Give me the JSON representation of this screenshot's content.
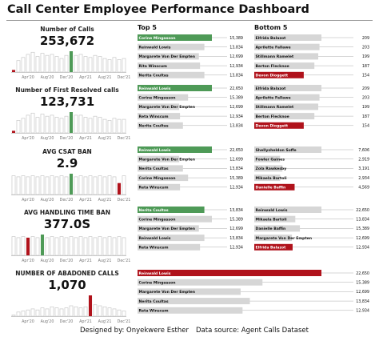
{
  "title": "Call Center Employee Performance Dashboard",
  "headers": {
    "top5": "Top 5",
    "bottom5": "Bottom 5"
  },
  "footer": {
    "designer": "Designed by:  Onyekwere Esther",
    "source": "Data source: Agent Calls Dataset"
  },
  "colors": {
    "green": "#4e9a57",
    "red": "#b0121b",
    "gray": "#d6d6d6",
    "outline": "#c8c8c8"
  },
  "chart_data": [
    {
      "type": "bar",
      "label": "Number of Calls",
      "value": "253,672",
      "categories": [
        "Jan'20",
        "Feb'20",
        "Mar'20",
        "Apr'20",
        "May'20",
        "Jun'20",
        "Jul'20",
        "Aug'20",
        "Sep'20",
        "Oct'20",
        "Nov'20",
        "Dec'20",
        "Jan'21",
        "Feb'21",
        "Mar'21",
        "Apr'21",
        "May'21",
        "Jun'21",
        "Jul'21",
        "Aug'21",
        "Sep'21",
        "Oct'21",
        "Nov'21",
        "Dec'21"
      ],
      "tick_labels": [
        "Apr'20",
        "Aug'20",
        "Dec'20",
        "Apr'21",
        "Aug'21",
        "Dec'21"
      ],
      "values": [
        0.1,
        0.55,
        0.7,
        0.85,
        0.95,
        0.75,
        0.9,
        0.8,
        0.85,
        0.75,
        0.65,
        0.8,
        1.0,
        0.8,
        0.85,
        0.75,
        0.7,
        0.8,
        0.75,
        0.65,
        0.6,
        0.7,
        0.6,
        0.65
      ],
      "highlight": [
        {
          "index": 0,
          "color": "red"
        },
        {
          "index": 12,
          "color": "green"
        }
      ]
    },
    {
      "type": "bar",
      "label": "Number of First Resolved calls",
      "value": "123,731",
      "categories": [
        "Jan'20",
        "Feb'20",
        "Mar'20",
        "Apr'20",
        "May'20",
        "Jun'20",
        "Jul'20",
        "Aug'20",
        "Sep'20",
        "Oct'20",
        "Nov'20",
        "Dec'20",
        "Jan'21",
        "Feb'21",
        "Mar'21",
        "Apr'21",
        "May'21",
        "Jun'21",
        "Jul'21",
        "Aug'21",
        "Sep'21",
        "Oct'21",
        "Nov'21",
        "Dec'21"
      ],
      "tick_labels": [
        "Apr'20",
        "Aug'20",
        "Dec'20",
        "Apr'21",
        "Aug'21",
        "Dec'21"
      ],
      "values": [
        0.1,
        0.6,
        0.7,
        0.85,
        0.95,
        0.75,
        0.9,
        0.8,
        0.85,
        0.75,
        0.7,
        0.8,
        1.0,
        0.85,
        0.85,
        0.75,
        0.7,
        0.8,
        0.75,
        0.65,
        0.6,
        0.7,
        0.65,
        0.65
      ],
      "highlight": [
        {
          "index": 0,
          "color": "red"
        },
        {
          "index": 12,
          "color": "green"
        }
      ]
    },
    {
      "type": "bar",
      "label": "AVG CSAT BAN",
      "value": "2.9",
      "categories": [
        "Jan'20",
        "Feb'20",
        "Mar'20",
        "Apr'20",
        "May'20",
        "Jun'20",
        "Jul'20",
        "Aug'20",
        "Sep'20",
        "Oct'20",
        "Nov'20",
        "Dec'20",
        "Jan'21",
        "Feb'21",
        "Mar'21",
        "Apr'21",
        "May'21",
        "Jun'21",
        "Jul'21",
        "Aug'21",
        "Sep'21",
        "Oct'21",
        "Nov'21",
        "Dec'21"
      ],
      "tick_labels": [
        "Apr'20",
        "Aug'20",
        "Dec'20",
        "Apr'21",
        "Aug'21",
        "Dec'21"
      ],
      "values": [
        0.9,
        0.85,
        0.9,
        0.85,
        0.9,
        0.85,
        0.9,
        0.85,
        0.9,
        0.85,
        0.9,
        0.85,
        1.0,
        0.85,
        0.9,
        0.85,
        0.9,
        0.85,
        0.9,
        0.85,
        0.9,
        0.85,
        0.55,
        0.9
      ],
      "highlight": [
        {
          "index": 12,
          "color": "green"
        },
        {
          "index": 22,
          "color": "red"
        }
      ]
    },
    {
      "type": "bar",
      "label": "AVG HANDLING TIME BAN",
      "value": "377.0S",
      "categories": [
        "Jan'20",
        "Feb'20",
        "Mar'20",
        "Apr'20",
        "May'20",
        "Jun'20",
        "Jul'20",
        "Aug'20",
        "Sep'20",
        "Oct'20",
        "Nov'20",
        "Dec'20",
        "Jan'21",
        "Feb'21",
        "Mar'21",
        "Apr'21",
        "May'21",
        "Jun'21",
        "Jul'21",
        "Aug'21",
        "Sep'21",
        "Oct'21",
        "Nov'21",
        "Dec'21"
      ],
      "tick_labels": [
        "Apr'20",
        "Aug'20",
        "Dec'20",
        "Apr'21",
        "Aug'21",
        "Dec'21"
      ],
      "values": [
        0.9,
        0.85,
        0.9,
        0.85,
        0.9,
        0.85,
        1.0,
        0.85,
        0.9,
        0.85,
        0.9,
        0.85,
        0.9,
        0.85,
        0.9,
        0.85,
        0.9,
        0.85,
        0.9,
        0.85,
        0.9,
        0.85,
        0.9,
        0.85
      ],
      "highlight": [
        {
          "index": 3,
          "color": "red"
        },
        {
          "index": 6,
          "color": "green"
        }
      ]
    },
    {
      "type": "bar",
      "label": "NUMBER OF ABADONED CALLS",
      "value": "1,070",
      "categories": [
        "Jan'20",
        "Feb'20",
        "Mar'20",
        "Apr'20",
        "May'20",
        "Jun'20",
        "Jul'20",
        "Aug'20",
        "Sep'20",
        "Oct'20",
        "Nov'20",
        "Dec'20",
        "Jan'21",
        "Feb'21",
        "Mar'21",
        "Apr'21",
        "May'21",
        "Jun'21",
        "Jul'21",
        "Aug'21",
        "Sep'21",
        "Oct'21",
        "Nov'21",
        "Dec'21"
      ],
      "tick_labels": [
        "Apr'20",
        "Aug'20",
        "Dec'20",
        "Apr'21",
        "Aug'21",
        "Dec'21"
      ],
      "values": [
        0.05,
        0.2,
        0.25,
        0.3,
        0.35,
        0.3,
        0.4,
        0.35,
        0.45,
        0.4,
        0.35,
        0.4,
        0.5,
        0.45,
        0.4,
        0.45,
        1.0,
        0.55,
        0.5,
        0.45,
        0.4,
        0.35,
        0.3,
        0.25
      ],
      "highlight": [
        {
          "index": 16,
          "color": "red"
        }
      ]
    }
  ],
  "ranking_data": [
    {
      "type": "bar",
      "metric": "Number of Calls",
      "top5_max": 15389,
      "bottom5_max": 209,
      "top5": [
        {
          "name": "Corine Mingasson",
          "value": "15,389",
          "v": 15389
        },
        {
          "name": "Reinwald Lowis",
          "value": "13,834",
          "v": 13834
        },
        {
          "name": "Margarete Von Der Empten",
          "value": "12,699",
          "v": 12699
        },
        {
          "name": "Rita Winscum",
          "value": "12,934",
          "v": 12934
        },
        {
          "name": "Nerita Coultas",
          "value": "13,834",
          "v": 13834
        }
      ],
      "bottom5": [
        {
          "name": "Elfrida Balazot",
          "value": "209",
          "v": 209
        },
        {
          "name": "Aprilette Fallawe",
          "value": "203",
          "v": 203
        },
        {
          "name": "Stillmann Ramelet",
          "value": "199",
          "v": 199
        },
        {
          "name": "Berton Flecknoe",
          "value": "187",
          "v": 187
        },
        {
          "name": "Devon Dioggett",
          "value": "154",
          "v": 154
        }
      ]
    },
    {
      "type": "bar",
      "metric": "Number of First Resolved calls",
      "top5_max": 22650,
      "bottom5_max": 209,
      "top5": [
        {
          "name": "Reinwald Lowis",
          "value": "22,650",
          "v": 22650
        },
        {
          "name": "Corine Mingasson",
          "value": "15,389",
          "v": 15389
        },
        {
          "name": "Margarete Von Der Empten",
          "value": "12,699",
          "v": 12699
        },
        {
          "name": "Reta Winscum",
          "value": "12,934",
          "v": 12934
        },
        {
          "name": "Nerita Coultas",
          "value": "13,834",
          "v": 13834
        }
      ],
      "bottom5": [
        {
          "name": "Elfrida Balazot",
          "value": "209",
          "v": 209
        },
        {
          "name": "Aprilette Fallawe",
          "value": "203",
          "v": 203
        },
        {
          "name": "Stillmann Ramelet",
          "value": "199",
          "v": 199
        },
        {
          "name": "Berton Flecknoe",
          "value": "187",
          "v": 187
        },
        {
          "name": "Devon Dioggett",
          "value": "154",
          "v": 154
        }
      ]
    },
    {
      "type": "bar",
      "metric": "AVG CSAT BAN",
      "top5_max": 22650,
      "bottom5_max": 7606,
      "top5": [
        {
          "name": "Reinwald Lowis",
          "value": "22,650",
          "v": 22650
        },
        {
          "name": "Margarete Von Der Empten",
          "value": "12,699",
          "v": 12699
        },
        {
          "name": "Nerita Coultas",
          "value": "13,834",
          "v": 13834
        },
        {
          "name": "Corine Mingasson",
          "value": "15,389",
          "v": 15389
        },
        {
          "name": "Reta Winscum",
          "value": "12,934",
          "v": 12934
        }
      ],
      "bottom5": [
        {
          "name": "Shellysheldon Soffe",
          "value": "7,606",
          "v": 7606
        },
        {
          "name": "Fowler Gaines",
          "value": "2,919",
          "v": 2919
        },
        {
          "name": "Zola Rawkesby",
          "value": "3,191",
          "v": 3191
        },
        {
          "name": "Mikaela Bartoli",
          "value": "2,934",
          "v": 2934
        },
        {
          "name": "Danielle Baffin",
          "value": "4,569",
          "v": 4569
        }
      ]
    },
    {
      "type": "bar",
      "metric": "AVG HANDLING TIME BAN",
      "top5_max": 15389,
      "bottom5_max": 22650,
      "top5": [
        {
          "name": "Nerita Coultas",
          "value": "13,834",
          "v": 13834
        },
        {
          "name": "Corine Mingasson",
          "value": "15,389",
          "v": 15389
        },
        {
          "name": "Margarete Von Der Empten",
          "value": "12,699",
          "v": 12699
        },
        {
          "name": "Reinwald Lowis",
          "value": "13,834",
          "v": 13834
        },
        {
          "name": "Reta Winscum",
          "value": "12,934",
          "v": 12934
        }
      ],
      "bottom5": [
        {
          "name": "Reinwald Lowis",
          "value": "22,650",
          "v": 22650
        },
        {
          "name": "Mikaela Bartoli",
          "value": "13,834",
          "v": 13834
        },
        {
          "name": "Danielle Baffin",
          "value": "15,389",
          "v": 15389
        },
        {
          "name": "Margarete Von Der Empten",
          "value": "12,699",
          "v": 12699
        },
        {
          "name": "Elfrida Balazot",
          "value": "12,934",
          "v": 12934
        }
      ]
    },
    {
      "type": "bar",
      "metric": "NUMBER OF ABADONED CALLS",
      "max": 22650,
      "rows": [
        {
          "name": "Reinwald Lowis",
          "value": "22,650",
          "v": 22650
        },
        {
          "name": "Corine Mingasson",
          "value": "15,389",
          "v": 15389
        },
        {
          "name": "Margarete Von Der Empten",
          "value": "12,699",
          "v": 12699
        },
        {
          "name": "Nerita Coultas",
          "value": "13,834",
          "v": 13834
        },
        {
          "name": "Reta Winscum",
          "value": "12,934",
          "v": 12934
        }
      ]
    }
  ]
}
